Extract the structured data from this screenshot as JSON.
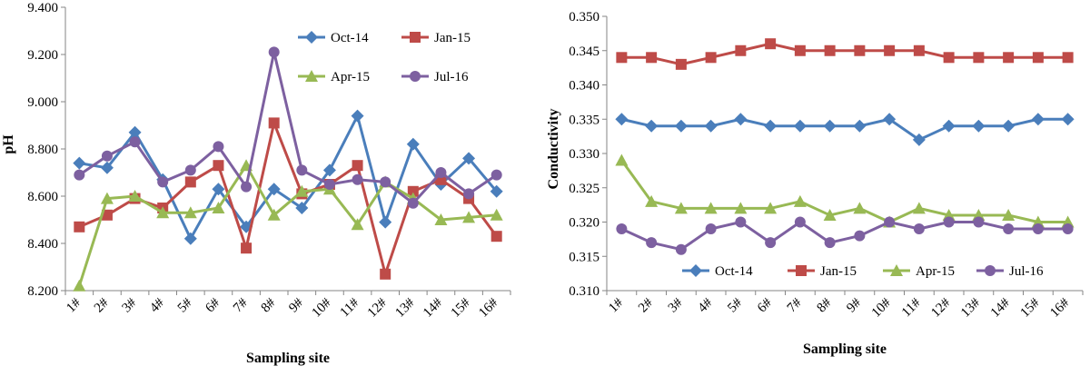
{
  "chart_data": [
    {
      "type": "line",
      "title": "",
      "xlabel": "Sampling site",
      "ylabel": "pH",
      "categories": [
        "1#",
        "2#",
        "3#",
        "4#",
        "5#",
        "6#",
        "7#",
        "8#",
        "9#",
        "10#",
        "11#",
        "12#",
        "13#",
        "14#",
        "15#",
        "16#"
      ],
      "ylim": [
        8.2,
        9.4
      ],
      "yticks": [
        "8.200",
        "8.400",
        "8.600",
        "8.800",
        "9.000",
        "9.200",
        "9.400"
      ],
      "grid": false,
      "legend_position": "top-right",
      "series": [
        {
          "name": "Oct-14",
          "color": "#4a7ebb",
          "marker": "diamond",
          "values": [
            8.74,
            8.72,
            8.87,
            8.67,
            8.42,
            8.63,
            8.47,
            8.63,
            8.55,
            8.71,
            8.94,
            8.49,
            8.82,
            8.65,
            8.76,
            8.62
          ]
        },
        {
          "name": "Jan-15",
          "color": "#be4b48",
          "marker": "square",
          "values": [
            8.47,
            8.52,
            8.59,
            8.55,
            8.66,
            8.73,
            8.38,
            8.91,
            8.61,
            8.65,
            8.73,
            8.27,
            8.62,
            8.67,
            8.59,
            8.43
          ]
        },
        {
          "name": "Apr-15",
          "color": "#98b954",
          "marker": "triangle",
          "values": [
            8.22,
            8.59,
            8.6,
            8.53,
            8.53,
            8.55,
            8.73,
            8.52,
            8.62,
            8.63,
            8.48,
            8.66,
            8.59,
            8.5,
            8.51,
            8.52
          ]
        },
        {
          "name": "Jul-16",
          "color": "#7d60a0",
          "marker": "circle",
          "values": [
            8.69,
            8.77,
            8.83,
            8.66,
            8.71,
            8.81,
            8.64,
            9.21,
            8.71,
            8.65,
            8.67,
            8.66,
            8.57,
            8.7,
            8.61,
            8.69
          ]
        }
      ]
    },
    {
      "type": "line",
      "title": "",
      "xlabel": "Sampling site",
      "ylabel": "Conductivity",
      "categories": [
        "1#",
        "2#",
        "3#",
        "4#",
        "5#",
        "6#",
        "7#",
        "8#",
        "9#",
        "10#",
        "11#",
        "12#",
        "13#",
        "14#",
        "15#",
        "16#"
      ],
      "ylim": [
        0.31,
        0.35
      ],
      "yticks": [
        "0.310",
        "0.315",
        "0.320",
        "0.325",
        "0.330",
        "0.335",
        "0.340",
        "0.345",
        "0.350"
      ],
      "grid": false,
      "legend_position": "bottom",
      "series": [
        {
          "name": "Oct-14",
          "color": "#4a7ebb",
          "marker": "diamond",
          "values": [
            0.335,
            0.334,
            0.334,
            0.334,
            0.335,
            0.334,
            0.334,
            0.334,
            0.334,
            0.335,
            0.332,
            0.334,
            0.334,
            0.334,
            0.335,
            0.335
          ]
        },
        {
          "name": "Jan-15",
          "color": "#be4b48",
          "marker": "square",
          "values": [
            0.344,
            0.344,
            0.343,
            0.344,
            0.345,
            0.346,
            0.345,
            0.345,
            0.345,
            0.345,
            0.345,
            0.344,
            0.344,
            0.344,
            0.344,
            0.344
          ]
        },
        {
          "name": "Apr-15",
          "color": "#98b954",
          "marker": "triangle",
          "values": [
            0.329,
            0.323,
            0.322,
            0.322,
            0.322,
            0.322,
            0.323,
            0.321,
            0.322,
            0.32,
            0.322,
            0.321,
            0.321,
            0.321,
            0.32,
            0.32
          ]
        },
        {
          "name": "Jul-16",
          "color": "#7d60a0",
          "marker": "circle",
          "values": [
            0.319,
            0.317,
            0.316,
            0.319,
            0.32,
            0.317,
            0.32,
            0.317,
            0.318,
            0.32,
            0.319,
            0.32,
            0.32,
            0.319,
            0.319,
            0.319
          ]
        }
      ]
    }
  ]
}
